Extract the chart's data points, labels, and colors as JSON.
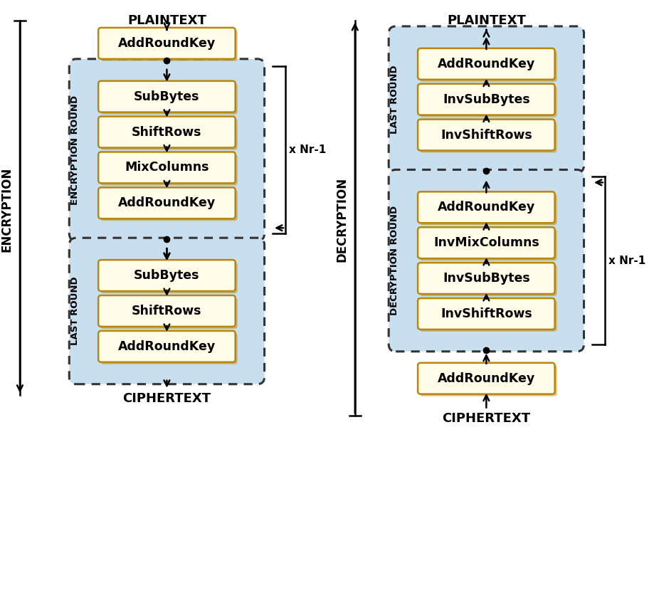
{
  "bg_color": "#ffffff",
  "box_fill": "#fffde7",
  "box_edge": "#b8860b",
  "round_fill": "#c8dff0",
  "round_edge": "#333333",
  "arrow_color": "#000000",
  "text_color": "#000000",
  "enc_plaintext": "PLAINTEXT",
  "enc_ciphertext": "CIPHERTEXT",
  "enc_label": "ENCRYPTION",
  "enc_xnr": "x Nr-1",
  "dec_plaintext": "PLAINTEXT",
  "dec_ciphertext": "CIPHERTEXT",
  "dec_label": "DECRYPTION",
  "dec_xnr": "x Nr-1",
  "enc_top_box": "AddRoundKey",
  "enc_round_label": "ENCRYPTION ROUND",
  "enc_round_boxes": [
    "SubBytes",
    "ShiftRows",
    "MixColumns",
    "AddRoundKey"
  ],
  "enc_last_label": "LAST ROUND",
  "enc_last_boxes": [
    "SubBytes",
    "ShiftRows",
    "AddRoundKey"
  ],
  "dec_last_label": "LAST ROUND",
  "dec_last_boxes": [
    "AddRoundKey",
    "InvSubBytes",
    "InvShiftRows"
  ],
  "dec_round_label": "DECRYPTION ROUND",
  "dec_round_boxes": [
    "AddRoundKey",
    "InvMixColumns",
    "InvSubBytes",
    "InvShiftRows"
  ],
  "dec_bottom_box": "AddRoundKey"
}
